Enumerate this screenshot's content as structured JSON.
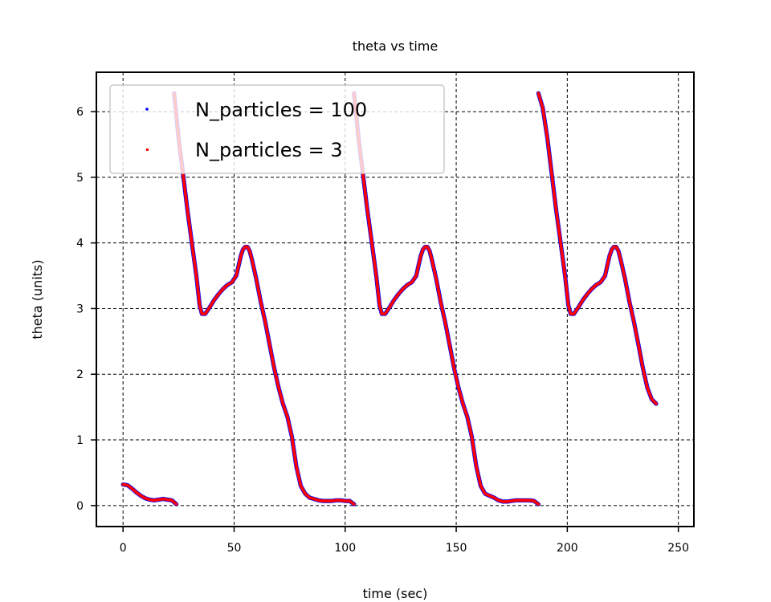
{
  "chart_data": {
    "type": "scatter",
    "title": "theta vs time",
    "xlabel": "time (sec)",
    "ylabel": "theta (units)",
    "xlim": [
      -12,
      257
    ],
    "ylim": [
      -0.32,
      6.6
    ],
    "xticks": [
      0,
      50,
      100,
      150,
      200,
      250
    ],
    "yticks": [
      0,
      1,
      2,
      3,
      4,
      5,
      6
    ],
    "grid": true,
    "legend_position": "upper-left",
    "series": [
      {
        "name": "N_particles = 100",
        "color": "#0000ff",
        "marker": "dot",
        "segments": [
          [
            [
              0,
              0.32
            ],
            [
              2,
              0.31
            ],
            [
              4,
              0.26
            ],
            [
              6,
              0.2
            ],
            [
              8,
              0.15
            ],
            [
              10,
              0.11
            ],
            [
              12,
              0.09
            ],
            [
              14,
              0.08
            ],
            [
              16,
              0.09
            ],
            [
              18,
              0.1
            ],
            [
              20,
              0.09
            ],
            [
              22,
              0.08
            ],
            [
              24,
              0.02
            ]
          ],
          [
            [
              23,
              6.28
            ],
            [
              25,
              5.6
            ],
            [
              27,
              5.05
            ],
            [
              29,
              4.5
            ],
            [
              31,
              4.0
            ],
            [
              33,
              3.5
            ],
            [
              34.5,
              3.05
            ],
            [
              35.5,
              2.92
            ],
            [
              37,
              2.92
            ],
            [
              39,
              3.02
            ],
            [
              41,
              3.13
            ],
            [
              43,
              3.22
            ],
            [
              45,
              3.3
            ],
            [
              47,
              3.36
            ],
            [
              49,
              3.4
            ],
            [
              51,
              3.5
            ],
            [
              52,
              3.65
            ],
            [
              53,
              3.8
            ],
            [
              54,
              3.9
            ],
            [
              55,
              3.94
            ],
            [
              56,
              3.94
            ],
            [
              57,
              3.88
            ],
            [
              58,
              3.75
            ],
            [
              60,
              3.45
            ],
            [
              62,
              3.1
            ],
            [
              64,
              2.8
            ],
            [
              66,
              2.45
            ],
            [
              68,
              2.1
            ],
            [
              70,
              1.8
            ],
            [
              72,
              1.55
            ],
            [
              74,
              1.35
            ],
            [
              76,
              1.05
            ],
            [
              78,
              0.6
            ],
            [
              80,
              0.3
            ],
            [
              82,
              0.18
            ],
            [
              84,
              0.12
            ],
            [
              86,
              0.1
            ],
            [
              88,
              0.08
            ],
            [
              90,
              0.07
            ],
            [
              92,
              0.07
            ],
            [
              94,
              0.07
            ],
            [
              96,
              0.08
            ],
            [
              98,
              0.08
            ],
            [
              100,
              0.07
            ],
            [
              102,
              0.07
            ],
            [
              104,
              0.02
            ]
          ],
          [
            [
              104,
              6.28
            ],
            [
              106,
              5.6
            ],
            [
              108,
              5.05
            ],
            [
              110,
              4.5
            ],
            [
              112,
              4.0
            ],
            [
              114,
              3.5
            ],
            [
              115.5,
              3.05
            ],
            [
              116.5,
              2.92
            ],
            [
              118,
              2.92
            ],
            [
              120,
              3.02
            ],
            [
              122,
              3.13
            ],
            [
              124,
              3.22
            ],
            [
              126,
              3.3
            ],
            [
              128,
              3.36
            ],
            [
              130,
              3.4
            ],
            [
              132,
              3.5
            ],
            [
              133,
              3.65
            ],
            [
              134,
              3.8
            ],
            [
              135,
              3.9
            ],
            [
              136,
              3.94
            ],
            [
              137,
              3.94
            ],
            [
              138,
              3.88
            ],
            [
              139,
              3.75
            ],
            [
              141,
              3.45
            ],
            [
              143,
              3.1
            ],
            [
              145,
              2.8
            ],
            [
              147,
              2.45
            ],
            [
              149,
              2.1
            ],
            [
              151,
              1.8
            ],
            [
              153,
              1.55
            ],
            [
              155,
              1.35
            ],
            [
              157,
              1.05
            ],
            [
              159,
              0.6
            ],
            [
              161,
              0.3
            ],
            [
              163,
              0.18
            ],
            [
              165,
              0.15
            ],
            [
              167,
              0.12
            ],
            [
              169,
              0.08
            ],
            [
              171,
              0.06
            ],
            [
              173,
              0.06
            ],
            [
              175,
              0.07
            ],
            [
              177,
              0.08
            ],
            [
              179,
              0.08
            ],
            [
              181,
              0.08
            ],
            [
              183,
              0.08
            ],
            [
              185,
              0.07
            ],
            [
              187,
              0.02
            ]
          ],
          [
            [
              187,
              6.28
            ],
            [
              189,
              6.05
            ],
            [
              191,
              5.6
            ],
            [
              193,
              5.05
            ],
            [
              195,
              4.5
            ],
            [
              197,
              4.0
            ],
            [
              199,
              3.5
            ],
            [
              200.5,
              3.05
            ],
            [
              201.5,
              2.92
            ],
            [
              203,
              2.92
            ],
            [
              205,
              3.02
            ],
            [
              207,
              3.13
            ],
            [
              209,
              3.22
            ],
            [
              211,
              3.3
            ],
            [
              213,
              3.36
            ],
            [
              215,
              3.4
            ],
            [
              217,
              3.5
            ],
            [
              218,
              3.65
            ],
            [
              219,
              3.8
            ],
            [
              220,
              3.9
            ],
            [
              221,
              3.94
            ],
            [
              222,
              3.94
            ],
            [
              223,
              3.88
            ],
            [
              224,
              3.75
            ],
            [
              226,
              3.45
            ],
            [
              228,
              3.1
            ],
            [
              230,
              2.8
            ],
            [
              232,
              2.45
            ],
            [
              234,
              2.1
            ],
            [
              236,
              1.8
            ],
            [
              238,
              1.62
            ],
            [
              240,
              1.55
            ]
          ]
        ]
      },
      {
        "name": "N_particles = 3",
        "color": "#ff0000",
        "marker": "square",
        "segments": [
          [
            [
              0,
              0.32
            ],
            [
              2,
              0.31
            ],
            [
              4,
              0.26
            ],
            [
              6,
              0.2
            ],
            [
              8,
              0.15
            ],
            [
              10,
              0.11
            ],
            [
              12,
              0.09
            ],
            [
              14,
              0.08
            ],
            [
              16,
              0.09
            ],
            [
              18,
              0.1
            ],
            [
              20,
              0.09
            ],
            [
              22,
              0.08
            ],
            [
              24,
              0.02
            ]
          ],
          [
            [
              23,
              6.28
            ],
            [
              25,
              5.6
            ],
            [
              27,
              5.05
            ],
            [
              29,
              4.5
            ],
            [
              31,
              4.0
            ],
            [
              33,
              3.5
            ],
            [
              34.5,
              3.05
            ],
            [
              35.5,
              2.92
            ],
            [
              37,
              2.92
            ],
            [
              39,
              3.02
            ],
            [
              41,
              3.13
            ],
            [
              43,
              3.22
            ],
            [
              45,
              3.3
            ],
            [
              47,
              3.36
            ],
            [
              49,
              3.4
            ],
            [
              51,
              3.5
            ],
            [
              52,
              3.65
            ],
            [
              53,
              3.8
            ],
            [
              54,
              3.9
            ],
            [
              55,
              3.94
            ],
            [
              56,
              3.94
            ],
            [
              57,
              3.88
            ],
            [
              58,
              3.75
            ],
            [
              60,
              3.45
            ],
            [
              62,
              3.1
            ],
            [
              64,
              2.8
            ],
            [
              66,
              2.45
            ],
            [
              68,
              2.1
            ],
            [
              70,
              1.8
            ],
            [
              72,
              1.55
            ],
            [
              74,
              1.35
            ],
            [
              76,
              1.05
            ],
            [
              78,
              0.6
            ],
            [
              80,
              0.3
            ],
            [
              82,
              0.18
            ],
            [
              84,
              0.12
            ],
            [
              86,
              0.1
            ],
            [
              88,
              0.08
            ],
            [
              90,
              0.07
            ],
            [
              92,
              0.07
            ],
            [
              94,
              0.07
            ],
            [
              96,
              0.08
            ],
            [
              98,
              0.08
            ],
            [
              100,
              0.07
            ],
            [
              102,
              0.07
            ],
            [
              104,
              0.02
            ]
          ],
          [
            [
              104,
              6.28
            ],
            [
              106,
              5.6
            ],
            [
              108,
              5.05
            ],
            [
              110,
              4.5
            ],
            [
              112,
              4.0
            ],
            [
              114,
              3.5
            ],
            [
              115.5,
              3.05
            ],
            [
              116.5,
              2.92
            ],
            [
              118,
              2.92
            ],
            [
              120,
              3.02
            ],
            [
              122,
              3.13
            ],
            [
              124,
              3.22
            ],
            [
              126,
              3.3
            ],
            [
              128,
              3.36
            ],
            [
              130,
              3.4
            ],
            [
              132,
              3.5
            ],
            [
              133,
              3.65
            ],
            [
              134,
              3.8
            ],
            [
              135,
              3.9
            ],
            [
              136,
              3.94
            ],
            [
              137,
              3.94
            ],
            [
              138,
              3.88
            ],
            [
              139,
              3.75
            ],
            [
              141,
              3.45
            ],
            [
              143,
              3.1
            ],
            [
              145,
              2.8
            ],
            [
              147,
              2.45
            ],
            [
              149,
              2.1
            ],
            [
              151,
              1.8
            ],
            [
              153,
              1.55
            ],
            [
              155,
              1.35
            ],
            [
              157,
              1.05
            ],
            [
              159,
              0.6
            ],
            [
              161,
              0.3
            ],
            [
              163,
              0.18
            ],
            [
              165,
              0.15
            ],
            [
              167,
              0.12
            ],
            [
              169,
              0.08
            ],
            [
              171,
              0.06
            ],
            [
              173,
              0.06
            ],
            [
              175,
              0.07
            ],
            [
              177,
              0.08
            ],
            [
              179,
              0.08
            ],
            [
              181,
              0.08
            ],
            [
              183,
              0.08
            ],
            [
              185,
              0.07
            ],
            [
              187,
              0.02
            ]
          ],
          [
            [
              187,
              6.28
            ],
            [
              189,
              6.05
            ],
            [
              191,
              5.6
            ],
            [
              193,
              5.05
            ],
            [
              195,
              4.5
            ],
            [
              197,
              4.0
            ],
            [
              199,
              3.5
            ],
            [
              200.5,
              3.05
            ],
            [
              201.5,
              2.92
            ],
            [
              203,
              2.92
            ],
            [
              205,
              3.02
            ],
            [
              207,
              3.13
            ],
            [
              209,
              3.22
            ],
            [
              211,
              3.3
            ],
            [
              213,
              3.36
            ],
            [
              215,
              3.4
            ],
            [
              217,
              3.5
            ],
            [
              218,
              3.65
            ],
            [
              219,
              3.8
            ],
            [
              220,
              3.9
            ],
            [
              221,
              3.94
            ],
            [
              222,
              3.94
            ],
            [
              223,
              3.88
            ],
            [
              224,
              3.75
            ],
            [
              226,
              3.45
            ],
            [
              228,
              3.1
            ],
            [
              230,
              2.8
            ],
            [
              232,
              2.45
            ],
            [
              234,
              2.1
            ],
            [
              236,
              1.8
            ],
            [
              238,
              1.62
            ],
            [
              240,
              1.55
            ]
          ]
        ]
      }
    ]
  }
}
